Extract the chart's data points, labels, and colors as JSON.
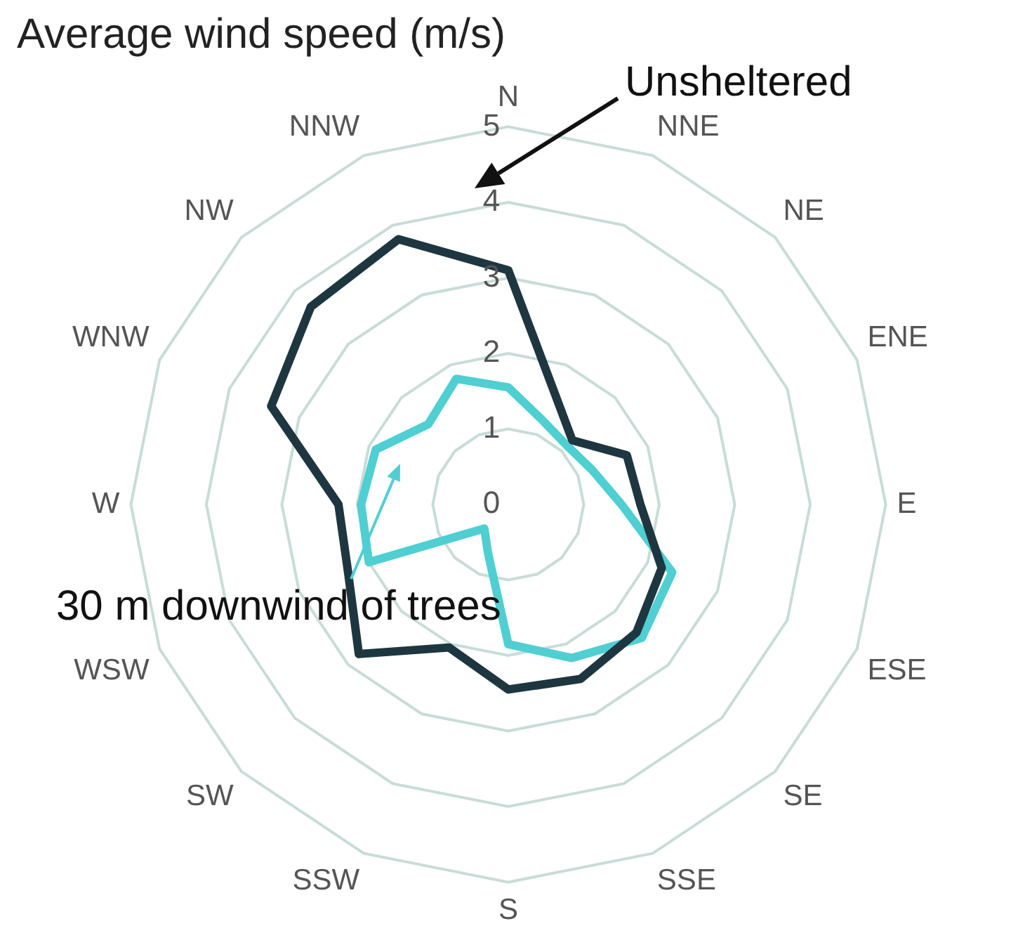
{
  "chart_data": {
    "type": "radar",
    "title": "Average wind speed (m/s)",
    "categories": [
      "N",
      "NNE",
      "NE",
      "ENE",
      "E",
      "ESE",
      "SE",
      "SSE",
      "S",
      "SSW",
      "SW",
      "WSW",
      "W",
      "WNW",
      "NW",
      "NNW"
    ],
    "series": [
      {
        "color": "#1e3640",
        "values": [
          3.1,
          1.6,
          1.2,
          1.7,
          1.75,
          2.2,
          2.4,
          2.5,
          2.45,
          2.05,
          2.8,
          2.3,
          2.25,
          3.4,
          3.7,
          3.8
        ]
      },
      {
        "color": "#4fcfd2",
        "values": [
          1.55,
          1.2,
          1.1,
          1.2,
          1.5,
          2.35,
          2.5,
          2.2,
          1.85,
          0.7,
          0.45,
          2.0,
          1.95,
          1.9,
          1.5,
          1.8
        ]
      }
    ],
    "ylim": [
      0,
      5
    ],
    "yticks": [
      0,
      1,
      2,
      3,
      4,
      5
    ],
    "grid": true,
    "legend": false,
    "annotations": [
      "Unsheltered",
      "30 m downwind of trees"
    ]
  }
}
